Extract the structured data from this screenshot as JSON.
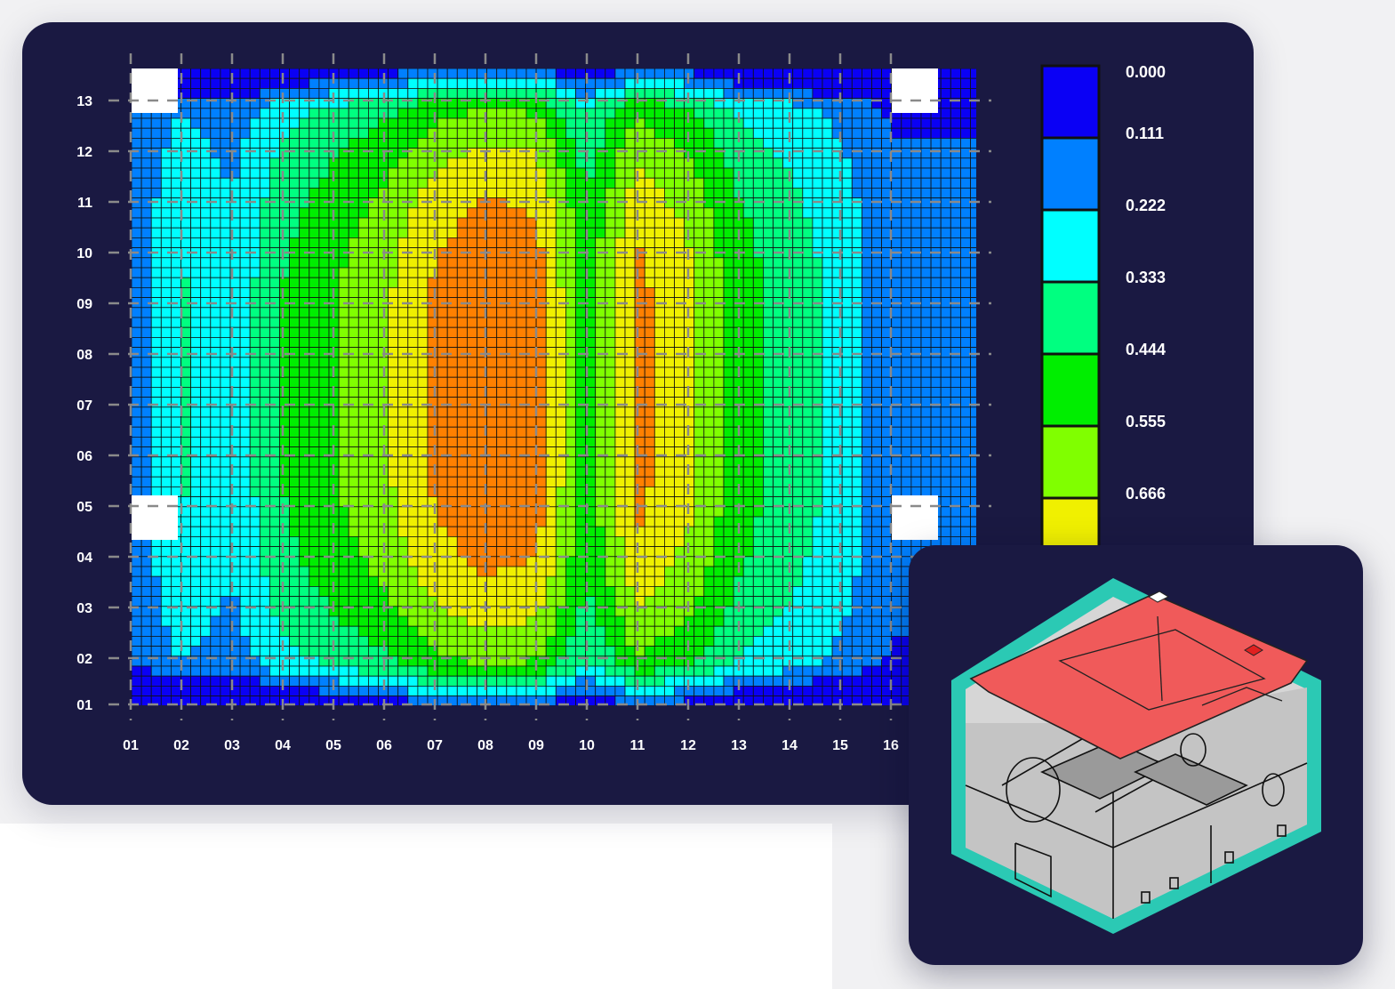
{
  "chart_data": {
    "type": "heatmap",
    "title": "",
    "xlabel": "",
    "ylabel": "",
    "x_ticks": [
      "01",
      "02",
      "03",
      "04",
      "05",
      "06",
      "07",
      "08",
      "09",
      "10",
      "11",
      "12",
      "13",
      "14",
      "15",
      "16"
    ],
    "y_ticks": [
      "13",
      "12",
      "11",
      "10",
      "09",
      "08",
      "07",
      "06",
      "05",
      "04",
      "03",
      "02",
      "01"
    ],
    "legend": {
      "values": [
        "0.000",
        "0.111",
        "0.222",
        "0.333",
        "0.444",
        "0.555",
        "0.666"
      ],
      "colors": [
        "#0a00f5",
        "#0080ff",
        "#00ffff",
        "#00ff80",
        "#00ee00",
        "#80ff00",
        "#f0f000",
        "#ff8000",
        "#ee0000"
      ]
    },
    "grid": true,
    "columns": [
      {
        "x": "01",
        "value": 0.15
      },
      {
        "x": "02",
        "value": 0.35
      },
      {
        "x": "03",
        "value": 0.25
      },
      {
        "x": "04",
        "value": 0.45
      },
      {
        "x": "05",
        "value": 0.55
      },
      {
        "x": "06",
        "value": 0.65
      },
      {
        "x": "07",
        "value": 0.8
      },
      {
        "x": "08",
        "value": 0.88
      },
      {
        "x": "09",
        "value": 0.85
      },
      {
        "x": "10",
        "value": 0.5
      },
      {
        "x": "11",
        "value": 0.82
      },
      {
        "x": "12",
        "value": 0.7
      },
      {
        "x": "13",
        "value": 0.5
      },
      {
        "x": "14",
        "value": 0.4
      },
      {
        "x": "15",
        "value": 0.3
      },
      {
        "x": "16",
        "value": 0.15
      }
    ]
  },
  "inset": {
    "icon": "isometric-room-model-icon",
    "hex_color": "#2bc9b4",
    "plane_color": "#f05a5a"
  }
}
